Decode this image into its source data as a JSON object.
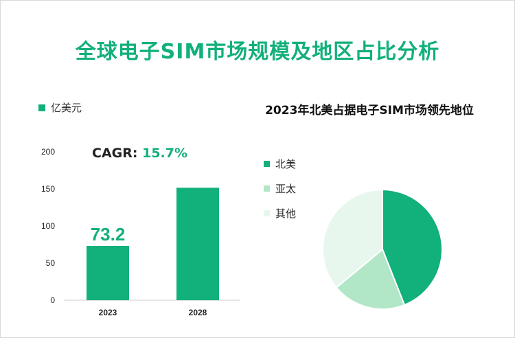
{
  "title": "全球电子SIM市场规模及地区占比分析",
  "colors": {
    "primary": "#12b07b",
    "light": "#b1e6c6",
    "pale": "#e8f7ee"
  },
  "bar_legend": "亿美元",
  "cagr_label": "CAGR:",
  "cagr_value": "15.7%",
  "pie_title": "2023年北美占据电子SIM市场领先地位",
  "chart_data": [
    {
      "type": "bar",
      "categories": [
        "2023",
        "2028"
      ],
      "series": [
        {
          "name": "亿美元",
          "values": [
            73.2,
            151.6
          ]
        }
      ],
      "data_labels": [
        "73.2",
        ""
      ],
      "ylim": [
        0,
        200
      ],
      "yticks": [
        0,
        50,
        100,
        150,
        200
      ],
      "grid": false
    },
    {
      "type": "pie",
      "title": "2023年北美占据电子SIM市场领先地位",
      "labels": [
        "北美",
        "亚太",
        "其他"
      ],
      "values": [
        44,
        20,
        36
      ],
      "colors": [
        "#12b07b",
        "#b1e6c6",
        "#e8f7ee"
      ],
      "legend": "left"
    }
  ]
}
